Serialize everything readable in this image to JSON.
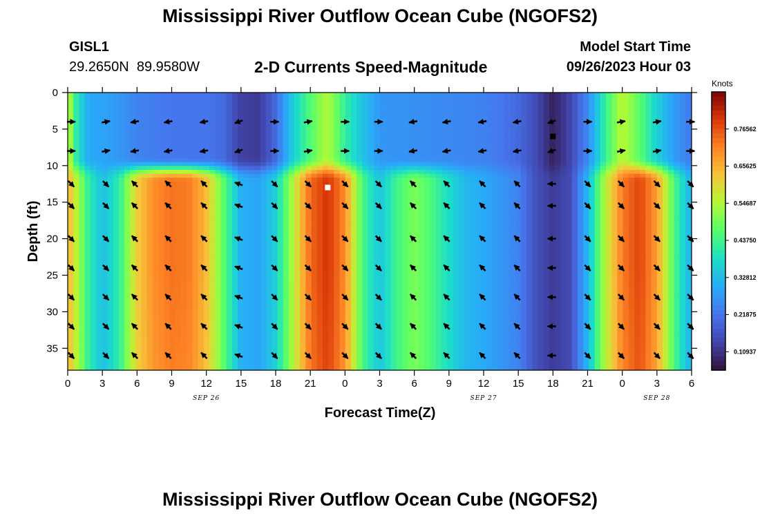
{
  "page": {
    "title_top": "Mississippi River Outflow Ocean Cube (NGOFS2)",
    "title_bottom": "Mississippi River Outflow Ocean Cube (NGOFS2)",
    "station": "GISL1",
    "coords": "29.2650N  89.9580W",
    "subtitle": "2-D Currents Speed-Magnitude",
    "model_start_label": "Model Start Time",
    "model_start_value": "09/26/2023 Hour 03"
  },
  "chart_data": {
    "type": "heatmap",
    "title": "2-D Currents Speed-Magnitude",
    "xlabel": "Forecast Time(Z)",
    "ylabel": "Depth (ft)",
    "colorbar_label": "Knots",
    "xlim": [
      0,
      54
    ],
    "ylim": [
      38,
      0
    ],
    "x_tick_values": [
      0,
      3,
      6,
      9,
      12,
      15,
      18,
      21,
      24,
      27,
      30,
      33,
      36,
      39,
      42,
      45,
      48,
      51,
      54
    ],
    "x_tick_labels": [
      "0",
      "3",
      "6",
      "9",
      "12",
      "15",
      "18",
      "21",
      "0",
      "3",
      "6",
      "9",
      "12",
      "15",
      "18",
      "21",
      "0",
      "3",
      "6"
    ],
    "y_ticks": [
      0,
      5,
      10,
      15,
      20,
      25,
      30,
      35
    ],
    "date_labels": [
      {
        "x": 12,
        "text": "SEP 26"
      },
      {
        "x": 36,
        "text": "SEP 27"
      },
      {
        "x": 51,
        "text": "SEP 28"
      }
    ],
    "colorbar_ticks": [
      "0.10937",
      "0.21875",
      "0.32812",
      "0.43750",
      "0.54687",
      "0.65625",
      "0.76562"
    ],
    "colorbar_range": [
      0.055,
      0.875
    ],
    "surface_layer": {
      "depth_max": 10.5,
      "time_speeds": [
        [
          0,
          0.58
        ],
        [
          0.8,
          0.4
        ],
        [
          1.8,
          0.3
        ],
        [
          3,
          0.29
        ],
        [
          4.5,
          0.27
        ],
        [
          6,
          0.24
        ],
        [
          9,
          0.22
        ],
        [
          12,
          0.22
        ],
        [
          13.5,
          0.2
        ],
        [
          15,
          0.13
        ],
        [
          16.5,
          0.12
        ],
        [
          18,
          0.2
        ],
        [
          19.5,
          0.36
        ],
        [
          21,
          0.46
        ],
        [
          22.5,
          0.55
        ],
        [
          24,
          0.42
        ],
        [
          25.5,
          0.34
        ],
        [
          27,
          0.27
        ],
        [
          30,
          0.26
        ],
        [
          33,
          0.25
        ],
        [
          36,
          0.24
        ],
        [
          39,
          0.2
        ],
        [
          40.5,
          0.15
        ],
        [
          42,
          0.08
        ],
        [
          43.5,
          0.14
        ],
        [
          45,
          0.25
        ],
        [
          46.5,
          0.42
        ],
        [
          48,
          0.56
        ],
        [
          49.5,
          0.47
        ],
        [
          51,
          0.36
        ],
        [
          52.5,
          0.28
        ],
        [
          54,
          0.22
        ]
      ]
    },
    "deep_layer": {
      "depth_min": 10.5,
      "time_speeds": [
        [
          0,
          0.66
        ],
        [
          0.8,
          0.55
        ],
        [
          1.8,
          0.42
        ],
        [
          3,
          0.33
        ],
        [
          4.5,
          0.42
        ],
        [
          6,
          0.62
        ],
        [
          7.5,
          0.7
        ],
        [
          9,
          0.73
        ],
        [
          10.5,
          0.72
        ],
        [
          12,
          0.64
        ],
        [
          13.5,
          0.47
        ],
        [
          15,
          0.31
        ],
        [
          16.5,
          0.29
        ],
        [
          18,
          0.36
        ],
        [
          19.5,
          0.55
        ],
        [
          21,
          0.74
        ],
        [
          22.5,
          0.8
        ],
        [
          24,
          0.7
        ],
        [
          25.5,
          0.45
        ],
        [
          27,
          0.34
        ],
        [
          28.5,
          0.44
        ],
        [
          30,
          0.5
        ],
        [
          31.5,
          0.45
        ],
        [
          33,
          0.38
        ],
        [
          34.5,
          0.32
        ],
        [
          36,
          0.3
        ],
        [
          37.5,
          0.27
        ],
        [
          39,
          0.24
        ],
        [
          40.5,
          0.16
        ],
        [
          42,
          0.12
        ],
        [
          43.5,
          0.15
        ],
        [
          45,
          0.32
        ],
        [
          46.5,
          0.55
        ],
        [
          48,
          0.72
        ],
        [
          49.5,
          0.78
        ],
        [
          51,
          0.68
        ],
        [
          52.5,
          0.45
        ],
        [
          54,
          0.3
        ]
      ]
    },
    "arrow_times": [
      0.3,
      3.3,
      5.8,
      8.7,
      11.8,
      14.8,
      17.9,
      20.8,
      24,
      26.9,
      29.9,
      32.8,
      35.9,
      38.9,
      41.9,
      45,
      47.9,
      51,
      53.9
    ],
    "arrow_depths_surface": [
      4,
      8
    ],
    "arrow_depths_deep": [
      12.5,
      15.5,
      20,
      24,
      28,
      32,
      36
    ],
    "surface_directions_deg": [
      0,
      10,
      190,
      190,
      190,
      200,
      0,
      10,
      0,
      0,
      190,
      190,
      190,
      190,
      200,
      0,
      10,
      10,
      0
    ],
    "deep_directions_deg": [
      -45,
      -45,
      135,
      135,
      135,
      160,
      -45,
      -45,
      -45,
      -45,
      135,
      135,
      135,
      135,
      180,
      -45,
      -45,
      -45,
      -45
    ],
    "markers": [
      {
        "x": 22.5,
        "depth": 13,
        "color": "#ffffff"
      },
      {
        "x": 42,
        "depth": 6,
        "color": "#000000"
      }
    ]
  }
}
